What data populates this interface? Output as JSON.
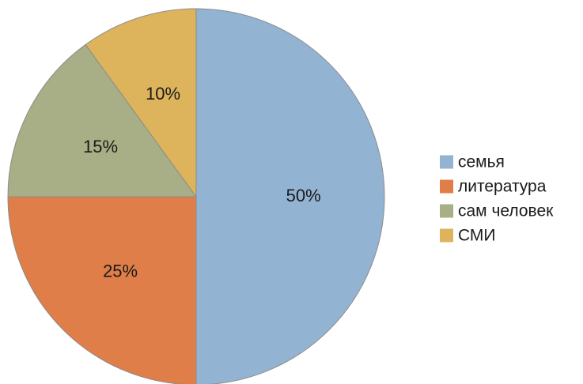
{
  "chart_data": {
    "type": "pie",
    "title": "",
    "start_angle_deg": 0,
    "direction": "clockwise",
    "legend_position": "right",
    "slices": [
      {
        "label": "семья",
        "value": 50,
        "display": "50%",
        "color": "#93b3d3"
      },
      {
        "label": "литература",
        "value": 25,
        "display": "25%",
        "color": "#df7e48"
      },
      {
        "label": "сам человек",
        "value": 15,
        "display": "15%",
        "color": "#a8ae85"
      },
      {
        "label": "СМИ",
        "value": 10,
        "display": "10%",
        "color": "#ddb45c"
      }
    ]
  }
}
